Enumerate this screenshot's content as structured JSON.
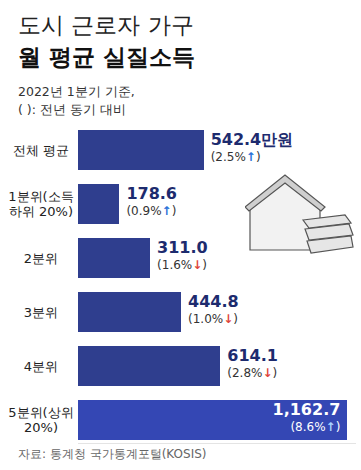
{
  "chart_data": {
    "type": "bar",
    "orientation": "horizontal",
    "title": "도시 근로자 가구",
    "subtitle": "월 평균 실질소득",
    "annotations": [
      "2022년 1분기 기준,",
      "( ): 전년 동기 대비"
    ],
    "source": "자료: 통계청 국가통계포털(KOSIS)",
    "categories": [
      "전체 평균",
      "1분위(소득 하위 20%)",
      "2분위",
      "3분위",
      "4분위",
      "5분위(상위 20%)"
    ],
    "values": [
      542.4,
      178.6,
      311.0,
      444.8,
      614.1,
      1162.7
    ],
    "value_labels": [
      "542.4만원",
      "178.6",
      "311.0",
      "444.8",
      "614.1",
      "1,162.7"
    ],
    "change_labels": [
      "(2.5%↑)",
      "(0.9%↑)",
      "(1.6%↓)",
      "(1.0%↓)",
      "(2.8%↓)",
      "(8.6%↑)"
    ],
    "colors": [
      "#2f3e8e",
      "#2f3e8e",
      "#2f3e8e",
      "#2f3e8e",
      "#2f3e8e",
      "#3447b4"
    ],
    "xlim": [
      0,
      1200
    ],
    "data_labels": true,
    "tick_labels": false,
    "grid": false
  }
}
